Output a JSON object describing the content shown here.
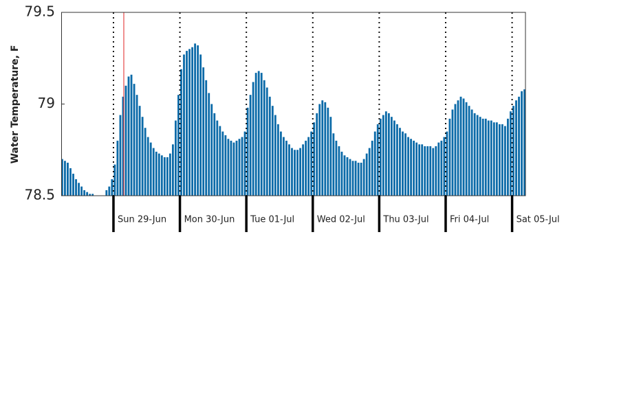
{
  "chart_data": {
    "type": "bar",
    "ylabel": "Water Temperature, F",
    "categories": [
      null,
      null,
      null,
      null,
      null,
      null,
      null,
      null,
      null,
      null,
      null,
      null,
      null,
      null,
      null,
      null,
      null,
      null,
      null,
      "Sun 29-Jun",
      null,
      null,
      null,
      null,
      null,
      null,
      null,
      null,
      null,
      null,
      null,
      null,
      null,
      null,
      null,
      null,
      null,
      null,
      null,
      null,
      null,
      null,
      null,
      "Mon 30-Jun",
      null,
      null,
      null,
      null,
      null,
      null,
      null,
      null,
      null,
      null,
      null,
      null,
      null,
      null,
      null,
      null,
      null,
      null,
      null,
      null,
      null,
      null,
      null,
      "Tue 01-Jul",
      null,
      null,
      null,
      null,
      null,
      null,
      null,
      null,
      null,
      null,
      null,
      null,
      null,
      null,
      null,
      null,
      null,
      null,
      null,
      null,
      null,
      null,
      null,
      "Wed 02-Jul",
      null,
      null,
      null,
      null,
      null,
      null,
      null,
      null,
      null,
      null,
      null,
      null,
      null,
      null,
      null,
      null,
      null,
      null,
      null,
      null,
      null,
      null,
      null,
      "Thu 03-Jul",
      null,
      null,
      null,
      null,
      null,
      null,
      null,
      null,
      null,
      null,
      null,
      null,
      null,
      null,
      null,
      null,
      null,
      null,
      null,
      null,
      null,
      null,
      null,
      "Fri 04-Jul",
      null,
      null,
      null,
      null,
      null,
      null,
      null,
      null,
      null,
      null,
      null,
      null,
      null,
      null,
      null,
      null,
      null,
      null,
      null,
      null,
      null,
      null,
      null,
      "Sat 05-Jul",
      null,
      null,
      null,
      null
    ],
    "values": [
      78.7,
      78.69,
      78.68,
      78.65,
      78.62,
      78.59,
      78.57,
      78.55,
      78.53,
      78.52,
      78.51,
      78.51,
      78.5,
      78.5,
      78.5,
      78.5,
      78.53,
      78.55,
      78.59,
      78.67,
      78.8,
      78.94,
      79.04,
      79.1,
      79.15,
      79.16,
      79.11,
      79.05,
      78.99,
      78.93,
      78.87,
      78.82,
      78.79,
      78.76,
      78.74,
      78.73,
      78.72,
      78.71,
      78.71,
      78.73,
      78.78,
      78.91,
      79.05,
      79.19,
      79.27,
      79.29,
      79.3,
      79.31,
      79.33,
      79.32,
      79.27,
      79.2,
      79.13,
      79.06,
      79.0,
      78.95,
      78.91,
      78.88,
      78.85,
      78.83,
      78.81,
      78.8,
      78.79,
      78.8,
      78.81,
      78.82,
      78.85,
      78.98,
      79.05,
      79.12,
      79.17,
      79.18,
      79.17,
      79.13,
      79.09,
      79.04,
      78.99,
      78.94,
      78.89,
      78.85,
      78.82,
      78.8,
      78.78,
      78.76,
      78.75,
      78.75,
      78.76,
      78.78,
      78.8,
      78.82,
      78.85,
      78.9,
      78.95,
      79.0,
      79.02,
      79.01,
      78.98,
      78.93,
      78.84,
      78.8,
      78.77,
      78.74,
      78.72,
      78.71,
      78.7,
      78.69,
      78.69,
      78.68,
      78.68,
      78.7,
      78.73,
      78.76,
      78.8,
      78.85,
      78.89,
      78.92,
      78.94,
      78.96,
      78.95,
      78.93,
      78.91,
      78.89,
      78.87,
      78.85,
      78.84,
      78.82,
      78.81,
      78.8,
      78.79,
      78.78,
      78.78,
      78.77,
      78.77,
      78.77,
      78.76,
      78.77,
      78.79,
      78.8,
      78.82,
      78.85,
      78.92,
      78.97,
      79.0,
      79.02,
      79.04,
      79.03,
      79.01,
      78.99,
      78.97,
      78.95,
      78.94,
      78.93,
      78.92,
      78.92,
      78.91,
      78.91,
      78.9,
      78.9,
      78.89,
      78.89,
      78.88,
      78.92,
      78.96,
      78.99,
      79.02,
      79.04,
      79.07,
      79.08
    ],
    "color": "#0b6aa8",
    "ylim": [
      78.5,
      79.5
    ],
    "yticks": [
      78.5,
      79,
      79.5
    ]
  }
}
